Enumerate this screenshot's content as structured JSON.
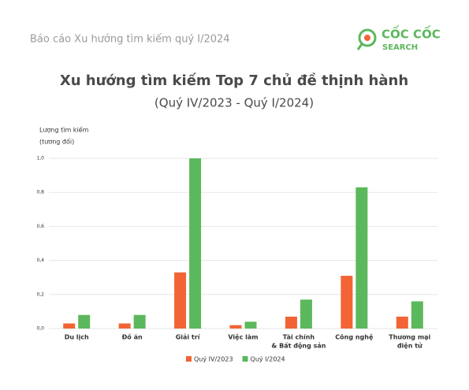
{
  "header": {
    "report": "Báo cáo Xu hướng tìm kiếm quý I/2024",
    "logo_name": "CỐC CỐC",
    "logo_sub": "SEARCH"
  },
  "chart_data": {
    "type": "bar",
    "title": "Xu hướng tìm kiếm Top 7 chủ đề thịnh hành",
    "subtitle": "(Quý IV/2023 - Quý I/2024)",
    "y_label": [
      "Lượng tìm kiếm",
      "(tương đối)"
    ],
    "categories": [
      [
        "Du lịch"
      ],
      [
        "Đồ ăn"
      ],
      [
        "Giải trí"
      ],
      [
        "Việc làm"
      ],
      [
        "Tài chính",
        "& Bất động sản"
      ],
      [
        "Công nghệ"
      ],
      [
        "Thương mại",
        "điện tử"
      ]
    ],
    "series": [
      {
        "name": "Quý IV/2023",
        "color": "#f26435",
        "values": [
          0.03,
          0.03,
          0.33,
          0.02,
          0.07,
          0.31,
          0.07
        ]
      },
      {
        "name": "Quý I/2024",
        "color": "#5cb85c",
        "values": [
          0.08,
          0.08,
          1.0,
          0.04,
          0.17,
          0.83,
          0.16
        ]
      }
    ],
    "ylim": [
      0,
      1
    ],
    "yticks": [
      {
        "value": 0,
        "label": "0,0"
      },
      {
        "value": 0.2,
        "label": "0,2"
      },
      {
        "value": 0.4,
        "label": "0,4"
      },
      {
        "value": 0.6,
        "label": "0,6"
      },
      {
        "value": 0.8,
        "label": "0,8"
      },
      {
        "value": 1,
        "label": "1,0"
      }
    ],
    "grid": true
  }
}
